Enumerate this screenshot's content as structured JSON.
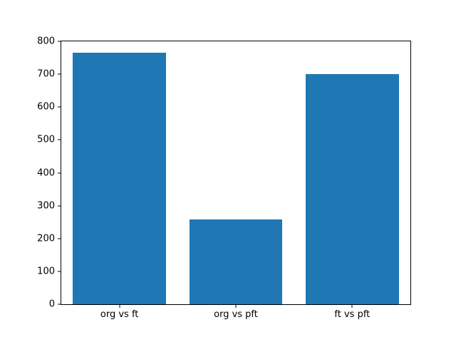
{
  "figure": {
    "background": "#ffffff",
    "axis_color": "#000000",
    "tick_label_color": "#000000"
  },
  "chart_data": {
    "type": "bar",
    "categories": [
      "org vs ft",
      "org vs pft",
      "ft vs pft"
    ],
    "values": [
      765,
      257,
      700
    ],
    "title": "",
    "xlabel": "",
    "ylabel": "",
    "ylim": [
      0,
      800
    ],
    "yticks": [
      0,
      100,
      200,
      300,
      400,
      500,
      600,
      700,
      800
    ],
    "bar_color": "#1f77b4",
    "bar_width_fraction": 0.8,
    "grid": false,
    "legend": null
  }
}
